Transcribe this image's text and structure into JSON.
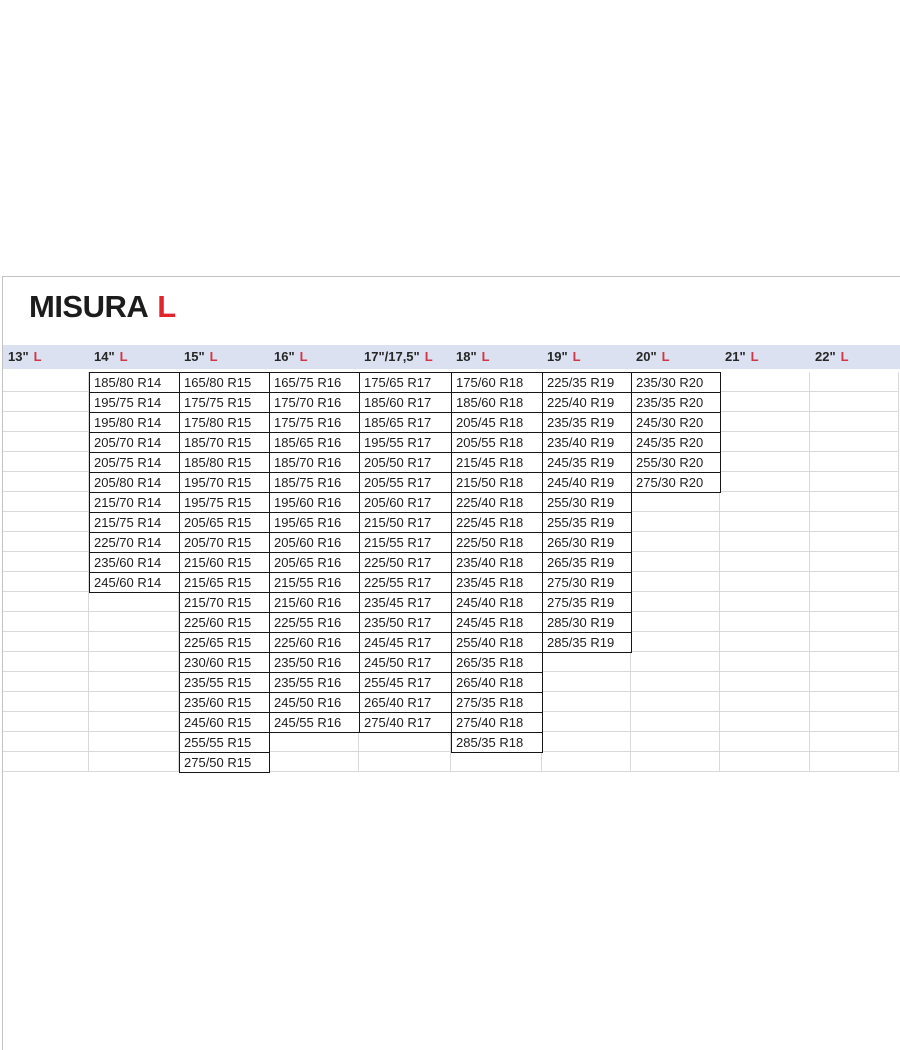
{
  "title": {
    "main": "MISURA",
    "accent": "L"
  },
  "colors": {
    "accent_red": "#e0252c",
    "header_red": "#cf3747",
    "header_bg": "#dbe1f1",
    "grid_line": "#d9d9d9",
    "cell_border": "#161616",
    "panel_border": "#c3c3c3",
    "text": "#1c1c1c"
  },
  "table": {
    "max_rows": 20,
    "columns": [
      {
        "id": "13in",
        "label": "13\"",
        "accent": "L",
        "sizes": []
      },
      {
        "id": "14in",
        "label": "14\"",
        "accent": "L",
        "sizes": [
          "185/80 R14",
          "195/75 R14",
          "195/80 R14",
          "205/70 R14",
          "205/75 R14",
          "205/80 R14",
          "215/70 R14",
          "215/75 R14",
          "225/70 R14",
          "235/60 R14",
          "245/60 R14"
        ]
      },
      {
        "id": "15in",
        "label": "15\"",
        "accent": "L",
        "sizes": [
          "165/80 R15",
          "175/75 R15",
          "175/80 R15",
          "185/70 R15",
          "185/80 R15",
          "195/70 R15",
          "195/75 R15",
          "205/65 R15",
          "205/70 R15",
          "215/60 R15",
          "215/65 R15",
          "215/70 R15",
          "225/60 R15",
          "225/65 R15",
          "230/60 R15",
          "235/55 R15",
          "235/60 R15",
          "245/60 R15",
          "255/55 R15",
          "275/50 R15"
        ]
      },
      {
        "id": "16in",
        "label": "16\"",
        "accent": "L",
        "sizes": [
          "165/75 R16",
          "175/70 R16",
          "175/75 R16",
          "185/65 R16",
          "185/70 R16",
          "185/75 R16",
          "195/60 R16",
          "195/65 R16",
          "205/60 R16",
          "205/65 R16",
          "215/55 R16",
          "215/60 R16",
          "225/55 R16",
          "225/60 R16",
          "235/50 R16",
          "235/55 R16",
          "245/50 R16",
          "245/55 R16"
        ]
      },
      {
        "id": "17in",
        "label": "17\"/17,5\"",
        "accent": "L",
        "sizes": [
          "175/65 R17",
          "185/60 R17",
          "185/65 R17",
          "195/55 R17",
          "205/50 R17",
          "205/55 R17",
          "205/60 R17",
          "215/50 R17",
          "215/55 R17",
          "225/50 R17",
          "225/55 R17",
          "235/45 R17",
          "235/50 R17",
          "245/45 R17",
          "245/50 R17",
          "255/45 R17",
          "265/40 R17",
          "275/40 R17"
        ]
      },
      {
        "id": "18in",
        "label": "18\"",
        "accent": "L",
        "sizes": [
          "175/60 R18",
          "185/60 R18",
          "205/45 R18",
          "205/55 R18",
          "215/45 R18",
          "215/50 R18",
          "225/40 R18",
          "225/45 R18",
          "225/50 R18",
          "235/40 R18",
          "235/45 R18",
          "245/40 R18",
          "245/45 R18",
          "255/40 R18",
          "265/35 R18",
          "265/40 R18",
          "275/35 R18",
          "275/40 R18",
          "285/35 R18"
        ]
      },
      {
        "id": "19in",
        "label": "19\"",
        "accent": "L",
        "sizes": [
          "225/35 R19",
          "225/40 R19",
          "235/35 R19",
          "235/40 R19",
          "245/35 R19",
          "245/40 R19",
          "255/30 R19",
          "255/35 R19",
          "265/30 R19",
          "265/35 R19",
          "275/30 R19",
          "275/35 R19",
          "285/30 R19",
          "285/35 R19"
        ]
      },
      {
        "id": "20in",
        "label": "20\"",
        "accent": "L",
        "sizes": [
          "235/30 R20",
          "235/35 R20",
          "245/30 R20",
          "245/35 R20",
          "255/30 R20",
          "275/30 R20"
        ]
      },
      {
        "id": "21in",
        "label": "21\"",
        "accent": "L",
        "sizes": []
      },
      {
        "id": "22in",
        "label": "22\"",
        "accent": "L",
        "sizes": []
      }
    ]
  }
}
